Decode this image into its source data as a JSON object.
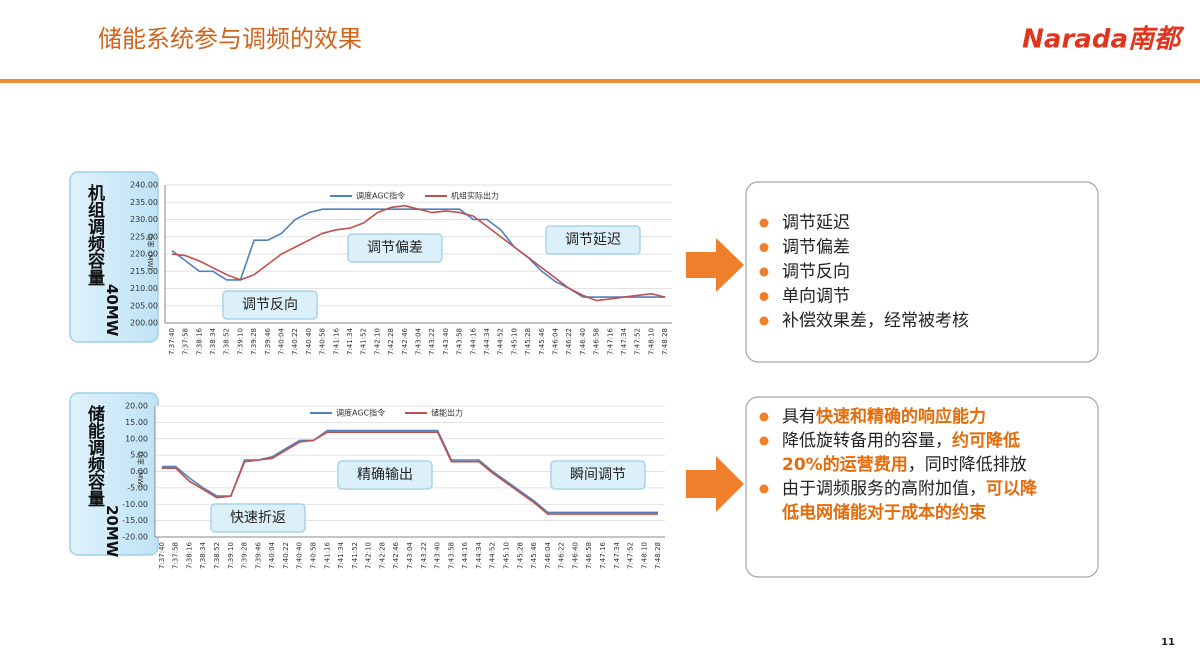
{
  "header": {
    "title": "储能系统参与调频的效果",
    "logo": "Narada南都"
  },
  "page_number": "11",
  "side_labels": [
    {
      "title": "机组调频容量",
      "capacity": "40MW"
    },
    {
      "title": "储能调频容量",
      "capacity": "20MW"
    }
  ],
  "chart_data": [
    {
      "type": "line",
      "y_label": "功率（MW）",
      "categories": [
        "7:37:40",
        "7:37:58",
        "7:38:16",
        "7:38:34",
        "7:38:52",
        "7:39:10",
        "7:39:28",
        "7:39:46",
        "7:40:04",
        "7:40:22",
        "7:40:40",
        "7:40:58",
        "7:41:16",
        "7:41:34",
        "7:41:52",
        "7:42:10",
        "7:42:28",
        "7:42:46",
        "7:43:04",
        "7:43:22",
        "7:43:40",
        "7:43:58",
        "7:44:16",
        "7:44:34",
        "7:44:52",
        "7:45:10",
        "7:45:28",
        "7:45:46",
        "7:46:04",
        "7:46:22",
        "7:46:40",
        "7:46:58",
        "7:47:16",
        "7:47:34",
        "7:47:52",
        "7:48:10",
        "7:48:28"
      ],
      "series": [
        {
          "name": "调度AGC指令",
          "color": "#4f81bd",
          "values": [
            221,
            218,
            215,
            215,
            212.5,
            212.5,
            224,
            224,
            226,
            230,
            232,
            233,
            233,
            233,
            233,
            233,
            233,
            233,
            233,
            233,
            233,
            233,
            230,
            230,
            227,
            222,
            219,
            215,
            212,
            210,
            207.5,
            207.5,
            207.5,
            207.5,
            207.5,
            207.5,
            207.5
          ]
        },
        {
          "name": "机组实际出力",
          "color": "#c0504d",
          "values": [
            220,
            219.5,
            218,
            216,
            214,
            212.5,
            214,
            217,
            220,
            222,
            224,
            226,
            227,
            227.5,
            229,
            232,
            233.5,
            234,
            233,
            232,
            232.5,
            232,
            231,
            228,
            225,
            222,
            219,
            216,
            213,
            210,
            208,
            206.5,
            207,
            207.5,
            208,
            208.5,
            207.5
          ]
        }
      ],
      "ylim": [
        200,
        240
      ],
      "yticks": [
        {
          "value": 200,
          "label": "200.00"
        },
        {
          "value": 205,
          "label": "205.00"
        },
        {
          "value": 210,
          "label": "210.00"
        },
        {
          "value": 215,
          "label": "215.00"
        },
        {
          "value": 220,
          "label": "220.00"
        },
        {
          "value": 225,
          "label": "225.00"
        },
        {
          "value": 230,
          "label": "230.00"
        },
        {
          "value": 235,
          "label": "235.00"
        },
        {
          "value": 240,
          "label": "240.00"
        }
      ],
      "grid": true,
      "annotations": [
        "调节偏差",
        "调节延迟",
        "调节反向"
      ]
    },
    {
      "type": "line",
      "y_label": "功率（MW）",
      "categories": [
        "7:37:40",
        "7:37:58",
        "7:38:16",
        "7:38:34",
        "7:38:52",
        "7:39:10",
        "7:39:28",
        "7:39:46",
        "7:40:04",
        "7:40:22",
        "7:40:40",
        "7:40:58",
        "7:41:16",
        "7:41:34",
        "7:41:52",
        "7:42:10",
        "7:42:28",
        "7:42:46",
        "7:43:04",
        "7:43:22",
        "7:43:40",
        "7:43:58",
        "7:44:16",
        "7:44:34",
        "7:44:52",
        "7:45:10",
        "7:45:28",
        "7:45:46",
        "7:46:04",
        "7:46:22",
        "7:46:40",
        "7:46:58",
        "7:47:16",
        "7:47:34",
        "7:47:52",
        "7:48:10",
        "7:48:28"
      ],
      "series": [
        {
          "name": "调度AGC指令",
          "color": "#4f81bd",
          "values": [
            1.5,
            1.5,
            -2,
            -5,
            -7.5,
            -7.5,
            3.5,
            3.5,
            4.5,
            7,
            9.5,
            9.5,
            12.5,
            12.5,
            12.5,
            12.5,
            12.5,
            12.5,
            12.5,
            12.5,
            12.5,
            3.5,
            3.5,
            3.5,
            0,
            -3,
            -6,
            -9,
            -12.5,
            -12.5,
            -12.5,
            -12.5,
            -12.5,
            -12.5,
            -12.5,
            -12.5,
            -12.5
          ]
        },
        {
          "name": "储能出力",
          "color": "#c0504d",
          "values": [
            1,
            1,
            -3,
            -5.5,
            -8,
            -7.5,
            3,
            3.5,
            4,
            6.5,
            9,
            9.5,
            12,
            12,
            12,
            12,
            12,
            12,
            12,
            12,
            12,
            3,
            3,
            3,
            -0.5,
            -3.5,
            -6.5,
            -9.5,
            -13,
            -13,
            -13,
            -13,
            -13,
            -13,
            -13,
            -13,
            -13
          ]
        }
      ],
      "ylim": [
        -20,
        20
      ],
      "yticks": [
        {
          "value": -20,
          "label": "-20.00"
        },
        {
          "value": -15,
          "label": "-15.00"
        },
        {
          "value": -10,
          "label": "-10.00"
        },
        {
          "value": -5,
          "label": "-5.00"
        },
        {
          "value": 0,
          "label": "0.00"
        },
        {
          "value": 5,
          "label": "5.00"
        },
        {
          "value": 10,
          "label": "10.00"
        },
        {
          "value": 15,
          "label": "15.00"
        },
        {
          "value": 20,
          "label": "20.00"
        }
      ],
      "grid": true,
      "annotations": [
        "精确输出",
        "瞬间调节",
        "快速折返"
      ]
    }
  ],
  "boxes": [
    {
      "bullets": [
        [
          [
            {
              "text": "调节延迟",
              "color": "#222222"
            }
          ]
        ],
        [
          [
            {
              "text": "调节偏差",
              "color": "#222222"
            }
          ]
        ],
        [
          [
            {
              "text": "调节反向",
              "color": "#222222"
            }
          ]
        ],
        [
          [
            {
              "text": "单向调节",
              "color": "#222222"
            }
          ]
        ],
        [
          [
            {
              "text": "补偿效果差，经常被考核",
              "color": "#222222"
            }
          ]
        ]
      ]
    },
    {
      "bullets": [
        [
          [
            {
              "text": "具有",
              "color": "#222222"
            },
            {
              "text": "快速和精确的响应能力",
              "color": "#e46c0a"
            }
          ]
        ],
        [
          [
            {
              "text": "降低旋转备用的容量，",
              "color": "#222222"
            },
            {
              "text": "约可降低",
              "color": "#e46c0a"
            }
          ],
          [
            {
              "text": "20%的运营费用",
              "color": "#e46c0a"
            },
            {
              "text": "，同时降低排放",
              "color": "#222222"
            }
          ]
        ],
        [
          [
            {
              "text": "由于调频服务的高附加值，",
              "color": "#222222"
            },
            {
              "text": "可以降",
              "color": "#e46c0a"
            }
          ],
          [
            {
              "text": "低电网储能对于成本的约束",
              "color": "#e46c0a"
            }
          ]
        ]
      ]
    }
  ]
}
